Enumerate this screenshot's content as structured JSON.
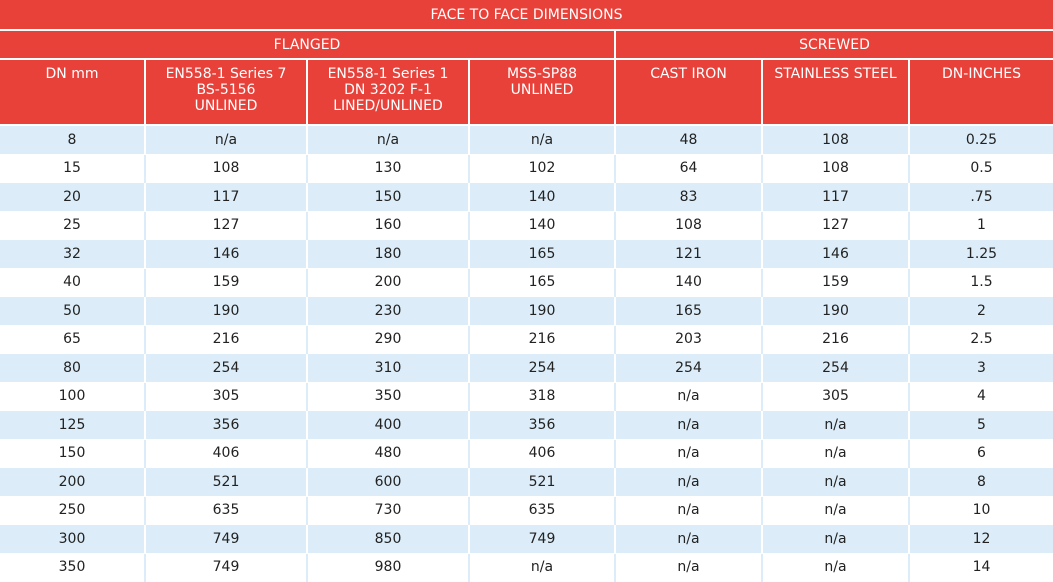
{
  "title": "FACE TO FACE DIMENSIONS",
  "groups": {
    "flanged": "FLANGED",
    "screwed": "SCREWED"
  },
  "columns": [
    "DN mm",
    "EN558-1 Series 7\nBS-5156\nUNLINED",
    "EN558-1 Series 1\nDN 3202 F-1\nLINED/UNLINED",
    "MSS-SP88\nUNLINED",
    "CAST IRON",
    "STAINLESS STEEL",
    "DN-INCHES"
  ],
  "rows": [
    [
      "8",
      "n/a",
      "n/a",
      "n/a",
      "48",
      "108",
      "0.25"
    ],
    [
      "15",
      "108",
      "130",
      "102",
      "64",
      "108",
      "0.5"
    ],
    [
      "20",
      "117",
      "150",
      "140",
      "83",
      "117",
      ".75"
    ],
    [
      "25",
      "127",
      "160",
      "140",
      "108",
      "127",
      "1"
    ],
    [
      "32",
      "146",
      "180",
      "165",
      "121",
      "146",
      "1.25"
    ],
    [
      "40",
      "159",
      "200",
      "165",
      "140",
      "159",
      "1.5"
    ],
    [
      "50",
      "190",
      "230",
      "190",
      "165",
      "190",
      "2"
    ],
    [
      "65",
      "216",
      "290",
      "216",
      "203",
      "216",
      "2.5"
    ],
    [
      "80",
      "254",
      "310",
      "254",
      "254",
      "254",
      "3"
    ],
    [
      "100",
      "305",
      "350",
      "318",
      "n/a",
      "305",
      "4"
    ],
    [
      "125",
      "356",
      "400",
      "356",
      "n/a",
      "n/a",
      "5"
    ],
    [
      "150",
      "406",
      "480",
      "406",
      "n/a",
      "n/a",
      "6"
    ],
    [
      "200",
      "521",
      "600",
      "521",
      "n/a",
      "n/a",
      "8"
    ],
    [
      "250",
      "635",
      "730",
      "635",
      "n/a",
      "n/a",
      "10"
    ],
    [
      "300",
      "749",
      "850",
      "749",
      "n/a",
      "n/a",
      "12"
    ],
    [
      "350",
      "749",
      "980",
      "n/a",
      "n/a",
      "n/a",
      "14"
    ]
  ],
  "colors": {
    "header": "#e8413a",
    "stripe": "#dcedf9"
  }
}
